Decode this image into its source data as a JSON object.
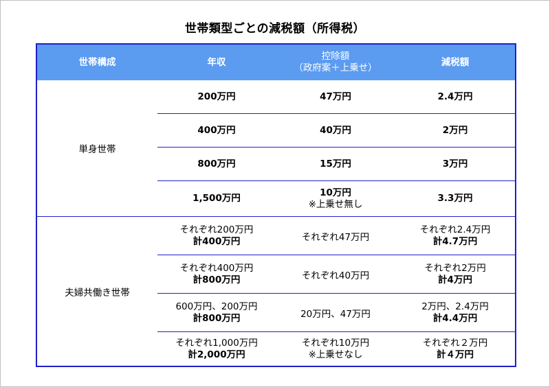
{
  "title": "世帯類型ごとの減税額（所得税）",
  "header": {
    "col1": "世帯構成",
    "col2": "年収",
    "col3_line1": "控除額",
    "col3_line2": "（政府案＋上乗せ）",
    "col4": "減税額"
  },
  "single": {
    "label": "単身世帯",
    "rows": [
      {
        "income": "200万円",
        "deduction": "47万円",
        "reduction": "2.4万円"
      },
      {
        "income": "400万円",
        "deduction": "40万円",
        "reduction": "2万円"
      },
      {
        "income": "800万円",
        "deduction": "15万円",
        "reduction": "3万円"
      },
      {
        "income": "1,500万円",
        "deduction": "10万円",
        "deduction_note": "※上乗せ無し",
        "reduction": "3.3万円"
      }
    ]
  },
  "couple": {
    "label": "夫婦共働き世帯",
    "rows": [
      {
        "income": "それぞれ200万円",
        "income_total": "計400万円",
        "deduction": "それぞれ47万円",
        "reduction": "それぞれ2.4万円",
        "reduction_total": "計4.7万円"
      },
      {
        "income": "それぞれ400万円",
        "income_total": "計800万円",
        "deduction": "それぞれ40万円",
        "reduction": "それぞれ2万円",
        "reduction_total": "計4万円"
      },
      {
        "income": "600万円、200万円",
        "income_total": "計800万円",
        "deduction": "20万円、47万円",
        "reduction": "2万円、2.4万円",
        "reduction_total": "計4.4万円"
      },
      {
        "income": "それぞれ1,000万円",
        "income_total": "計2,000万円",
        "deduction": "それぞれ10万円",
        "deduction_note": "※上乗せなし",
        "reduction": "それぞれ２万円",
        "reduction_total": "計４万円"
      }
    ]
  }
}
